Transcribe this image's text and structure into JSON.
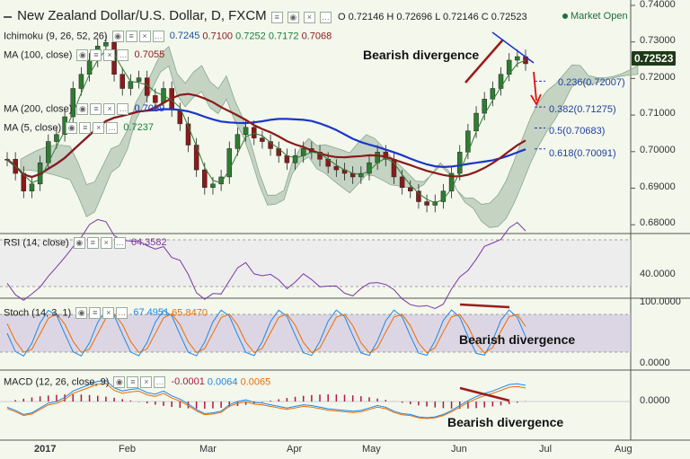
{
  "header": {
    "title": "New Zealand Dollar/U.S. Dollar, D, FXCM",
    "ohlc": "O 0.72146 H 0.72696 L 0.72146 C 0.72523",
    "market_status": "Market Open"
  },
  "indicators": {
    "ichimoku": {
      "label": "Ichimoku (9, 26, 52, 26)",
      "values": [
        "0.7245",
        "0.7100",
        "0.7252",
        "0.7172",
        "0.7068"
      ],
      "colors": [
        "#1b4f9b",
        "#8b1a1a",
        "#1b7f3b",
        "#1b7f3b",
        "#8b1a1a"
      ]
    },
    "ma100": {
      "label": "MA (100, close)",
      "value": "0.7055"
    },
    "ma200": {
      "label": "MA (200, close)",
      "value": "0.7099"
    },
    "ma5": {
      "label": "MA (5, close)",
      "value": "0.7237"
    }
  },
  "annotations": {
    "main": "Bearish divergence",
    "stoch": "Bearish divergence",
    "macd": "Bearish divergence"
  },
  "fib_levels": [
    {
      "label": "0.236(0.72007)",
      "price": 0.72007
    },
    {
      "label": "0.382(0.71275)",
      "price": 0.71275
    },
    {
      "label": "0.5(0.70683)",
      "price": 0.70683
    },
    {
      "label": "0.618(0.70091)",
      "price": 0.70091
    }
  ],
  "current_price": "0.72523",
  "colors": {
    "background": "#f3f7ec",
    "bull": "#2e7d32",
    "bear": "#8b1a1a",
    "cloud": "#9fb7a3",
    "ma_blue": "#1a36c7",
    "ma_red": "#8b1a1a",
    "divergence": "#9b1b1b",
    "arrow": "#e01010",
    "osc_fill": "#cdbfe0"
  },
  "panels": {
    "rsi": {
      "label": "RSI (14, close)",
      "value": "64.3582",
      "ticks": [
        "40.0000"
      ]
    },
    "stoch": {
      "label": "Stoch (14, 3, 1)",
      "values": [
        "67.4951",
        "65.8470"
      ],
      "ticks": [
        "100.0000",
        "0.0000"
      ]
    },
    "macd": {
      "label": "MACD (12, 26, close, 9)",
      "values": [
        "-0.0001",
        "0.0064",
        "0.0065"
      ],
      "ticks": [
        "0.0000"
      ]
    }
  },
  "price_axis": [
    "0.74000",
    "0.73000",
    "0.72000",
    "0.71000",
    "0.70000",
    "0.69000",
    "0.68000"
  ],
  "months": [
    "2017",
    "Feb",
    "Mar",
    "Apr",
    "May",
    "Jun",
    "Jul",
    "Aug"
  ],
  "chart_data": {
    "type": "candlestick",
    "title": "New Zealand Dollar/U.S. Dollar, D, FXCM",
    "ylim": [
      0.6775,
      0.7425
    ],
    "x_categories": [
      "2017",
      "Feb",
      "Mar",
      "Apr",
      "May",
      "Jun",
      "Jul",
      "Aug"
    ],
    "close_series": [
      0.698,
      0.694,
      0.689,
      0.691,
      0.697,
      0.703,
      0.705,
      0.71,
      0.718,
      0.722,
      0.726,
      0.73,
      0.731,
      0.722,
      0.718,
      0.72,
      0.721,
      0.716,
      0.714,
      0.718,
      0.712,
      0.708,
      0.702,
      0.695,
      0.69,
      0.691,
      0.693,
      0.701,
      0.705,
      0.707,
      0.704,
      0.703,
      0.701,
      0.699,
      0.697,
      0.699,
      0.701,
      0.7,
      0.698,
      0.696,
      0.695,
      0.694,
      0.693,
      0.694,
      0.697,
      0.7,
      0.698,
      0.693,
      0.69,
      0.689,
      0.686,
      0.685,
      0.686,
      0.689,
      0.694,
      0.7,
      0.706,
      0.711,
      0.715,
      0.718,
      0.722,
      0.726,
      0.727,
      0.725
    ]
  }
}
